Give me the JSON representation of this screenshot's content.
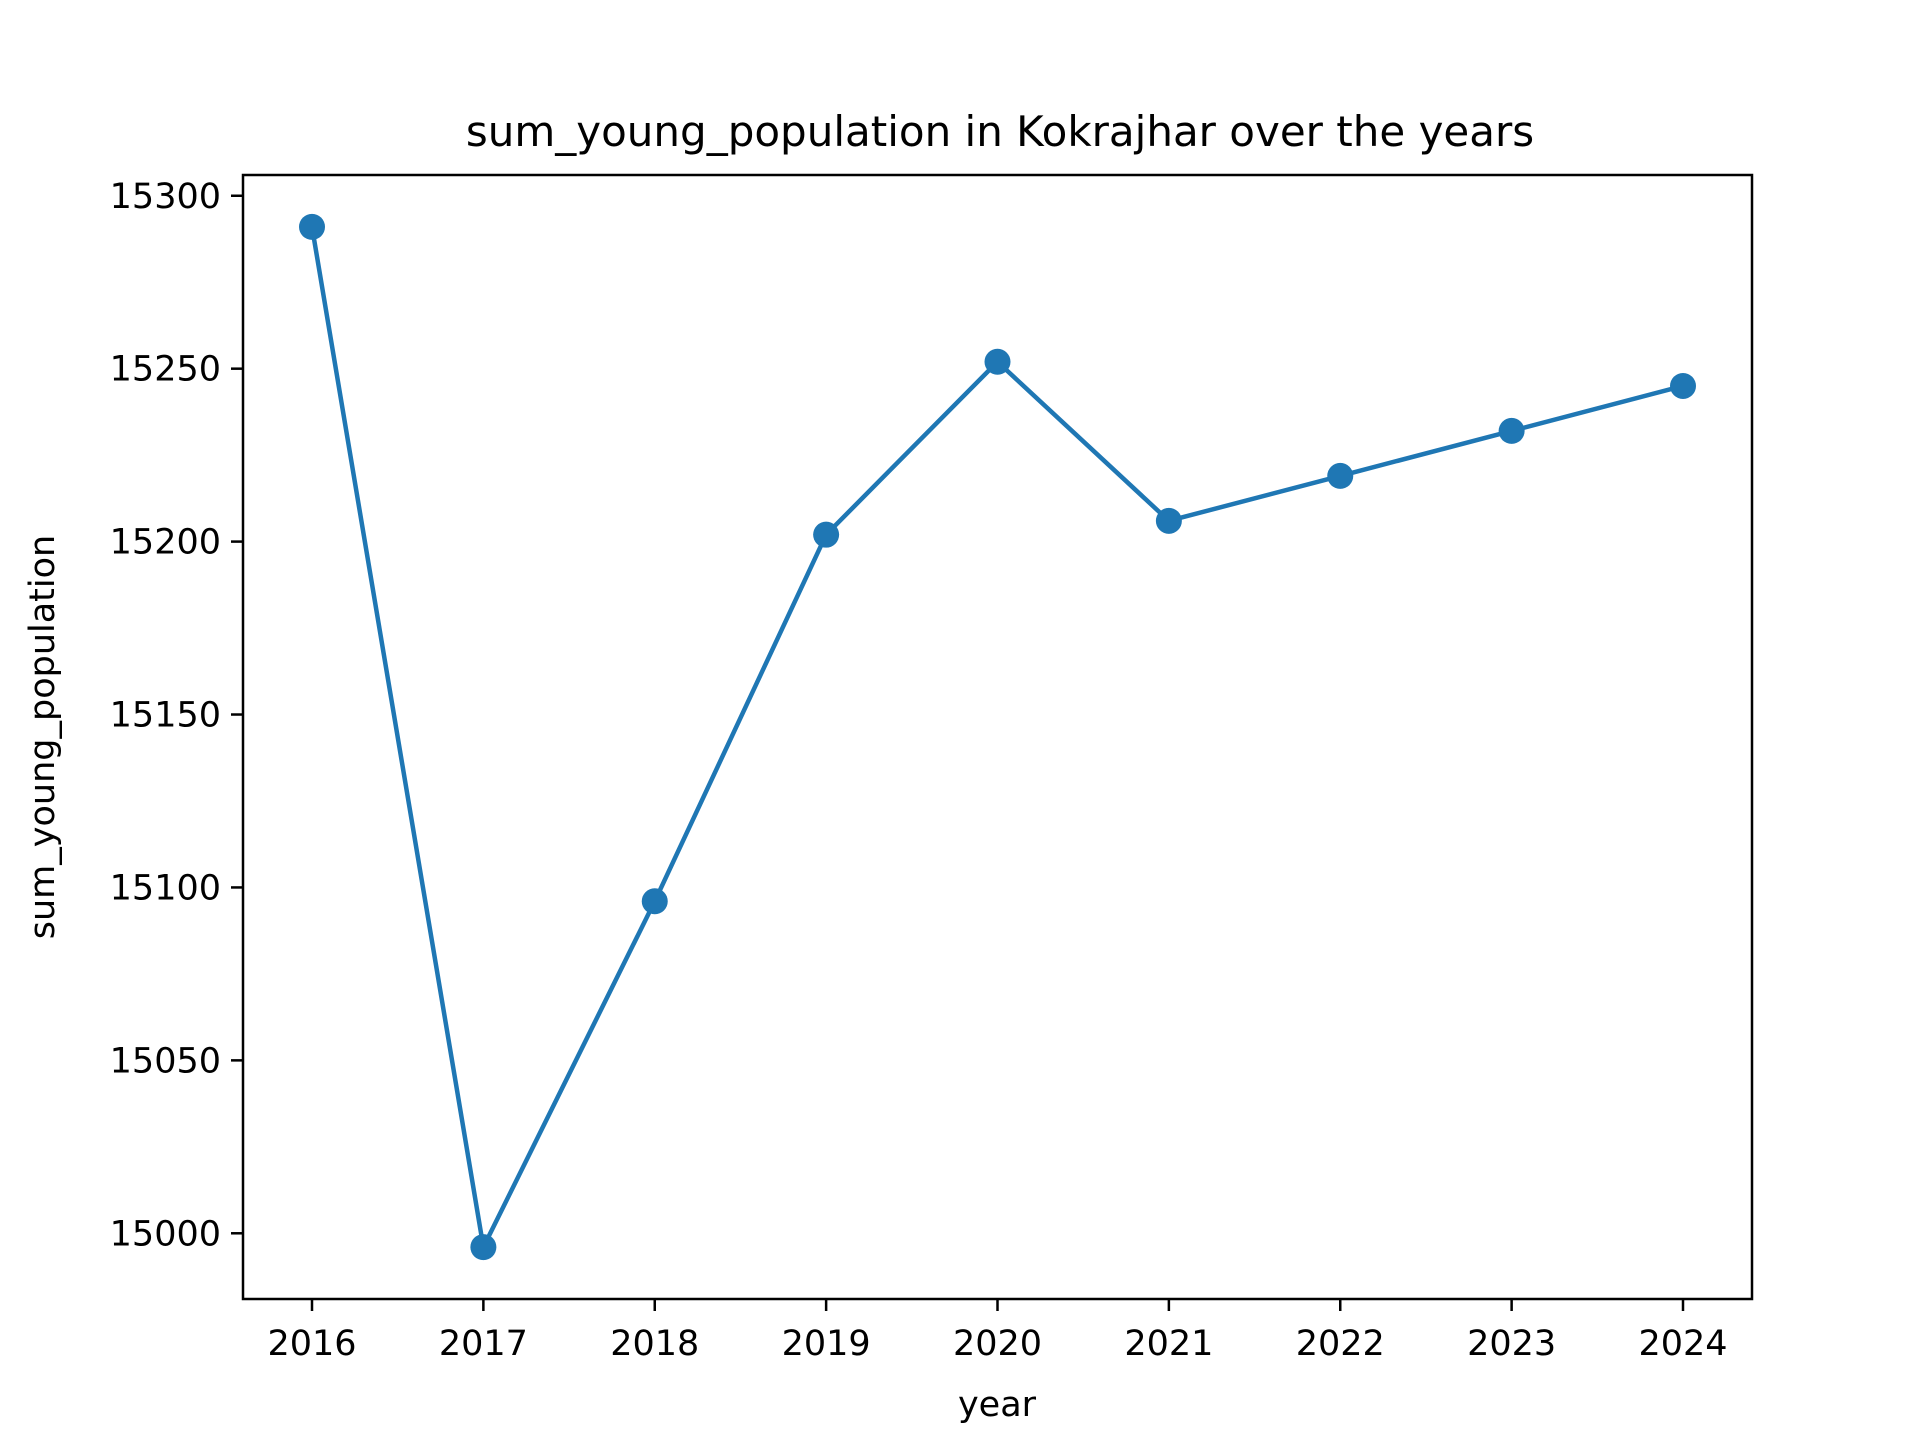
{
  "chart_data": {
    "type": "line",
    "title": "sum_young_population in Kokrajhar over the years",
    "xlabel": "year",
    "ylabel": "sum_young_population",
    "x": [
      "2016",
      "2017",
      "2018",
      "2019",
      "2020",
      "2021",
      "2022",
      "2023",
      "2024"
    ],
    "series": [
      {
        "values": [
          15291,
          14996,
          15096,
          15202,
          15252,
          15206,
          15219,
          15232,
          15245
        ]
      }
    ],
    "ylim": [
      14981,
      15306
    ],
    "yticks": [
      "15000",
      "15050",
      "15100",
      "15150",
      "15200",
      "15250",
      "15300"
    ],
    "grid": false,
    "colors": {
      "line": "#1f77b4",
      "marker": "#1f77b4",
      "axes": "#000000"
    }
  }
}
